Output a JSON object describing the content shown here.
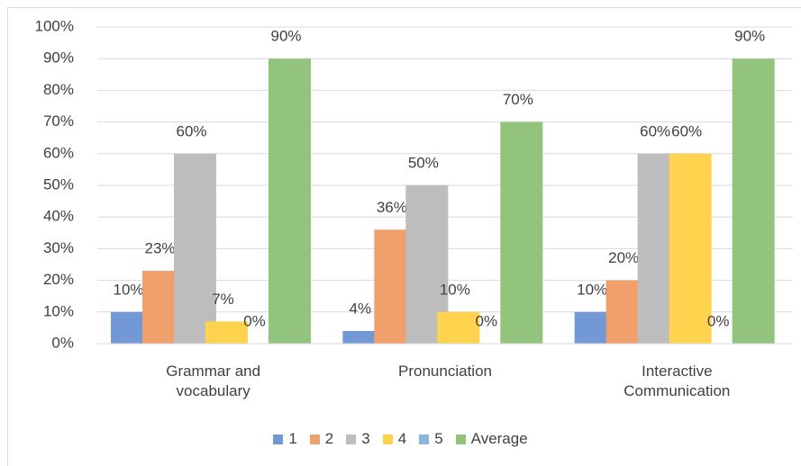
{
  "chart_data": {
    "type": "bar",
    "categories": [
      "Grammar and vocabulary",
      "Pronunciation",
      "Interactive Communication"
    ],
    "series": [
      {
        "name": "1",
        "color": "#7398d6",
        "values": [
          10,
          4,
          10
        ],
        "value_labels": [
          "10%",
          "4%",
          "10%"
        ]
      },
      {
        "name": "2",
        "color": "#f0a06a",
        "values": [
          23,
          36,
          20
        ],
        "value_labels": [
          "23%",
          "36%",
          "20%"
        ]
      },
      {
        "name": "3",
        "color": "#bdbdbd",
        "values": [
          60,
          50,
          60
        ],
        "value_labels": [
          "60%",
          "50%",
          "60%"
        ]
      },
      {
        "name": "4",
        "color": "#ffd34d",
        "values": [
          7,
          10,
          60
        ],
        "value_labels": [
          "7%",
          "10%",
          "60%"
        ]
      },
      {
        "name": "5",
        "color": "#8ab6e0",
        "values": [
          0,
          0,
          0
        ],
        "value_labels": [
          "0%",
          "0%",
          "0%"
        ]
      },
      {
        "name": "Average",
        "color": "#93c47d",
        "values": [
          90,
          70,
          90
        ],
        "value_labels": [
          "90%",
          "70%",
          "90%"
        ]
      }
    ],
    "ylim": [
      0,
      100
    ],
    "yticks": [
      {
        "value": 0,
        "label": "0%"
      },
      {
        "value": 10,
        "label": "10%"
      },
      {
        "value": 20,
        "label": "20%"
      },
      {
        "value": 30,
        "label": "30%"
      },
      {
        "value": 40,
        "label": "40%"
      },
      {
        "value": 50,
        "label": "50%"
      },
      {
        "value": 60,
        "label": "60%"
      },
      {
        "value": 70,
        "label": "70%"
      },
      {
        "value": 80,
        "label": "80%"
      },
      {
        "value": 90,
        "label": "90%"
      },
      {
        "value": 100,
        "label": "100%"
      }
    ],
    "grid": true,
    "legend": "bottom"
  }
}
